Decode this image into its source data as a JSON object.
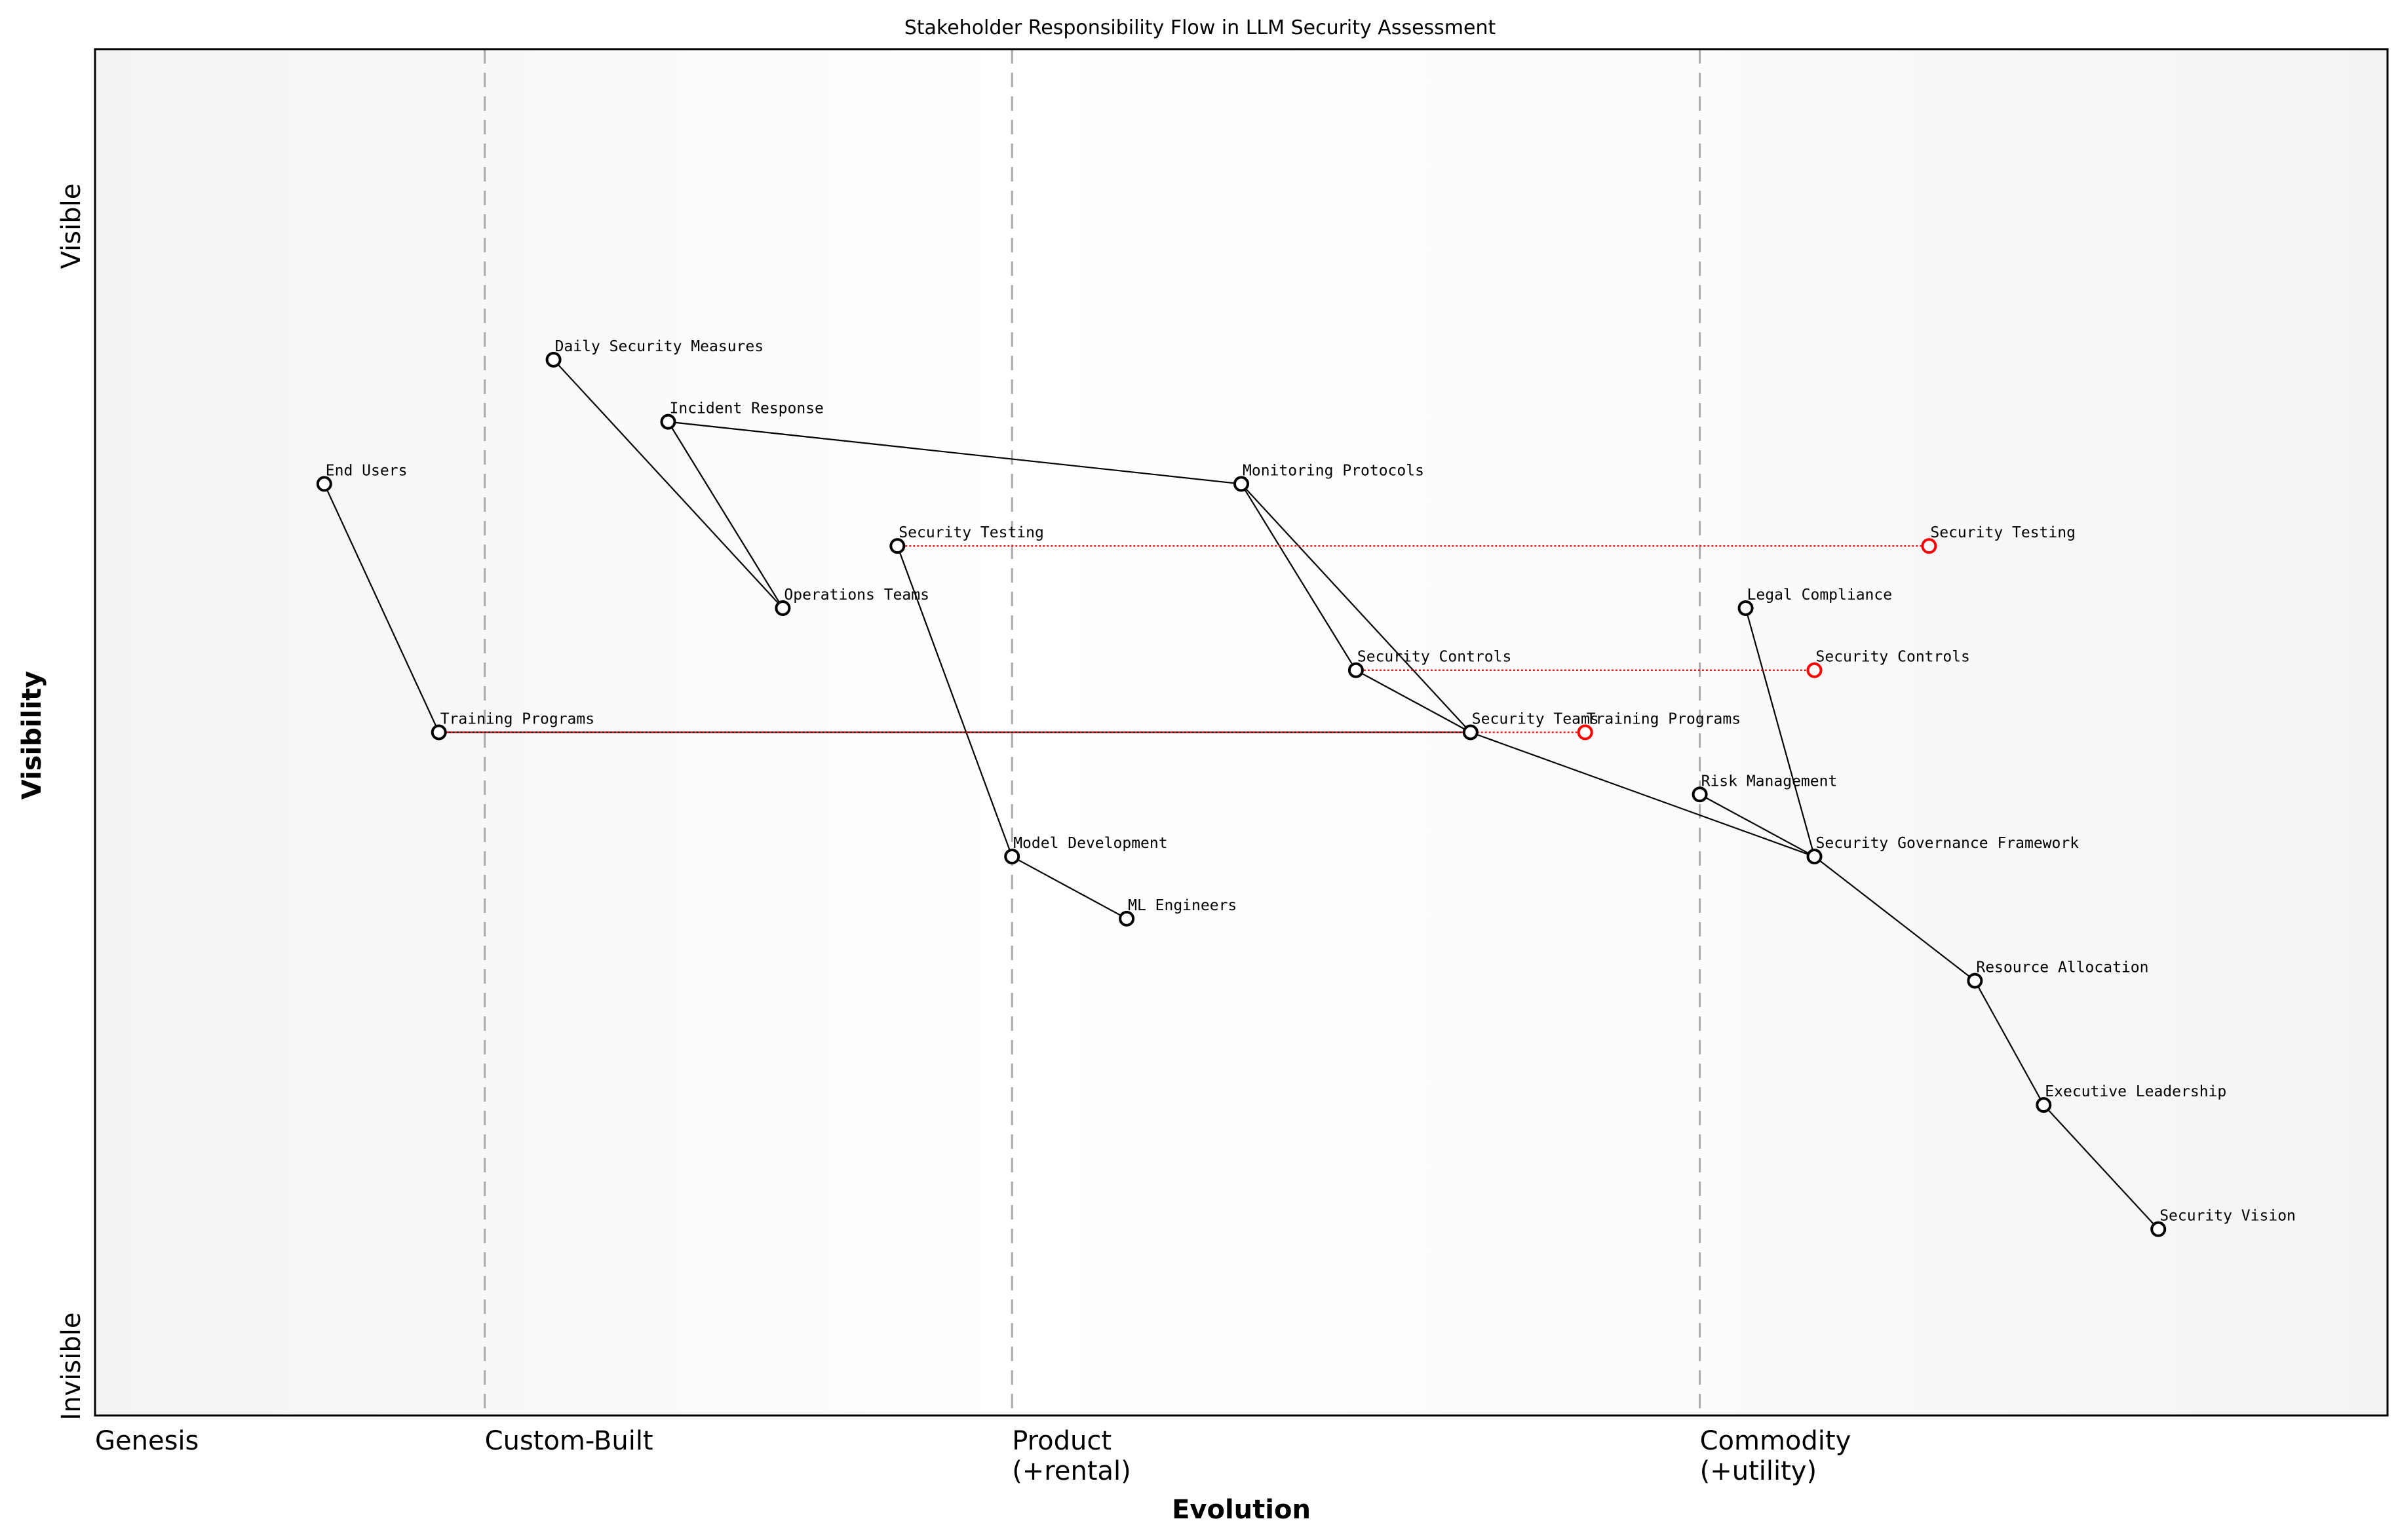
{
  "chart_data": {
    "type": "wardley-map",
    "title": "Stakeholder Responsibility Flow in LLM Security Assessment",
    "xlabel": "Evolution",
    "ylabel": "Visibility",
    "xlim": [
      0,
      1
    ],
    "ylim": [
      0,
      1.1
    ],
    "y_tick_labels": {
      "top": "Visible",
      "bottom": "Invisible"
    },
    "stages": [
      {
        "label": "Genesis",
        "x": 0
      },
      {
        "label": "Custom-Built",
        "x": 0.17
      },
      {
        "label": "Product",
        "sublabel": "(+rental)",
        "x": 0.4
      },
      {
        "label": "Commodity",
        "sublabel": "(+utility)",
        "x": 0.7
      }
    ],
    "components": [
      {
        "name": "End Users",
        "x": 0.1,
        "y": 0.75
      },
      {
        "name": "Training Programs",
        "x": 0.15,
        "y": 0.55
      },
      {
        "name": "Daily Security Measures",
        "x": 0.2,
        "y": 0.85
      },
      {
        "name": "Incident Response",
        "x": 0.25,
        "y": 0.8
      },
      {
        "name": "Operations Teams",
        "x": 0.3,
        "y": 0.65
      },
      {
        "name": "Security Testing",
        "x": 0.35,
        "y": 0.7
      },
      {
        "name": "Model Development",
        "x": 0.4,
        "y": 0.45
      },
      {
        "name": "ML Engineers",
        "x": 0.45,
        "y": 0.4
      },
      {
        "name": "Monitoring Protocols",
        "x": 0.5,
        "y": 0.75
      },
      {
        "name": "Security Controls",
        "x": 0.55,
        "y": 0.6
      },
      {
        "name": "Security Teams",
        "x": 0.6,
        "y": 0.55
      },
      {
        "name": "Risk Management",
        "x": 0.7,
        "y": 0.5
      },
      {
        "name": "Legal Compliance",
        "x": 0.72,
        "y": 0.65
      },
      {
        "name": "Security Governance Framework",
        "x": 0.75,
        "y": 0.45
      },
      {
        "name": "Resource Allocation",
        "x": 0.82,
        "y": 0.35
      },
      {
        "name": "Executive Leadership",
        "x": 0.85,
        "y": 0.25
      },
      {
        "name": "Security Vision",
        "x": 0.9,
        "y": 0.15
      }
    ],
    "links": [
      [
        "End Users",
        "Training Programs"
      ],
      [
        "Daily Security Measures",
        "Operations Teams"
      ],
      [
        "Incident Response",
        "Operations Teams"
      ],
      [
        "Incident Response",
        "Monitoring Protocols"
      ],
      [
        "Monitoring Protocols",
        "Security Controls"
      ],
      [
        "Monitoring Protocols",
        "Security Teams"
      ],
      [
        "Security Controls",
        "Security Teams"
      ],
      [
        "Training Programs",
        "Security Teams"
      ],
      [
        "Security Teams",
        "Security Governance Framework"
      ],
      [
        "Security Testing",
        "Model Development"
      ],
      [
        "Model Development",
        "ML Engineers"
      ],
      [
        "Risk Management",
        "Security Governance Framework"
      ],
      [
        "Legal Compliance",
        "Security Governance Framework"
      ],
      [
        "Security Governance Framework",
        "Resource Allocation"
      ],
      [
        "Resource Allocation",
        "Executive Leadership"
      ],
      [
        "Executive Leadership",
        "Security Vision"
      ]
    ],
    "evolutions": [
      {
        "name": "Security Testing",
        "from_x": 0.35,
        "to_x": 0.8,
        "y": 0.7
      },
      {
        "name": "Security Controls",
        "from_x": 0.55,
        "to_x": 0.75,
        "y": 0.6
      },
      {
        "name": "Training Programs",
        "from_x": 0.15,
        "to_x": 0.65,
        "y": 0.55
      }
    ],
    "colors": {
      "component": "#000000",
      "evolved": "#ff0000",
      "stage_line": "#aaaaaa",
      "background_edge": "#f3f3f3",
      "background_mid": "#ffffff"
    }
  }
}
